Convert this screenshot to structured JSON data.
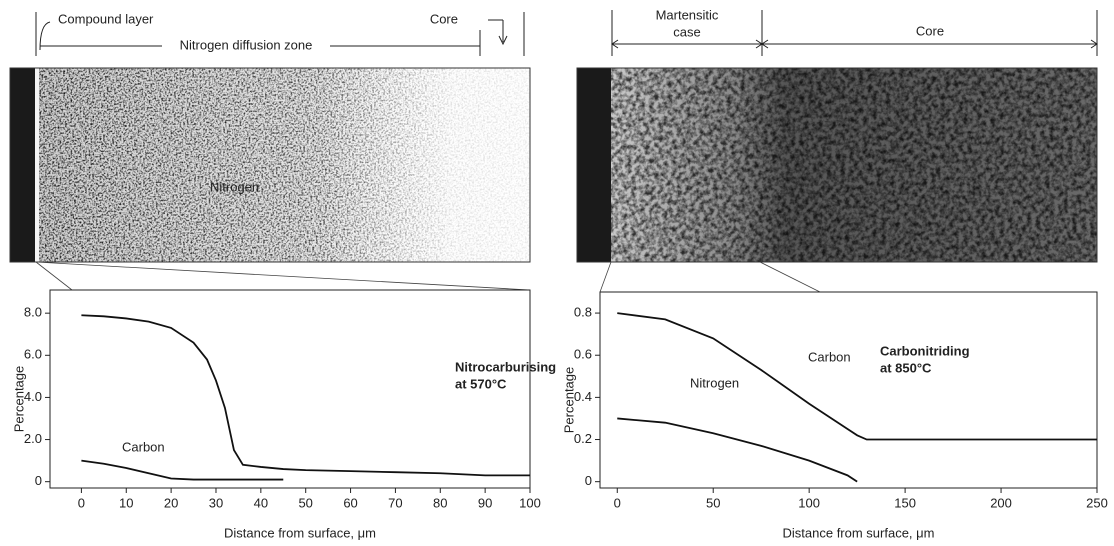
{
  "chart_data": [
    {
      "type": "line",
      "title": [
        "Nitrocarburising",
        "at 570°C"
      ],
      "micrograph_labels": [
        "Compound layer",
        "Nitrogen diffusion zone",
        "Core"
      ],
      "xlabel": "Distance from surface, μm",
      "ylabel": "Percentage",
      "x": [
        0,
        5,
        10,
        15,
        20,
        25,
        28,
        30,
        32,
        34,
        36,
        40,
        45,
        50,
        60,
        70,
        80,
        90,
        100
      ],
      "series": [
        {
          "name": "Nitrogen",
          "color": "#111111",
          "values": [
            7.9,
            7.85,
            7.75,
            7.6,
            7.3,
            6.6,
            5.8,
            4.8,
            3.5,
            1.5,
            0.8,
            0.7,
            0.6,
            0.55,
            0.5,
            0.45,
            0.4,
            0.3,
            0.3
          ]
        },
        {
          "name": "Carbon",
          "color": "#111111",
          "values": [
            1.0,
            0.85,
            0.65,
            0.4,
            0.15,
            0.1,
            0.1,
            0.1,
            0.1,
            0.1,
            0.1,
            0.1,
            0.1,
            null,
            null,
            null,
            null,
            null,
            null
          ]
        }
      ],
      "xlim": [
        -7,
        100
      ],
      "xticks": [
        0,
        10,
        20,
        30,
        40,
        50,
        60,
        70,
        80,
        90,
        100
      ],
      "ylim": [
        -0.3,
        9.1
      ],
      "yticks": [
        0,
        {
          "value": 2,
          "label": "2.0"
        },
        {
          "value": 4,
          "label": "4.0"
        },
        {
          "value": 6,
          "label": "6.0"
        },
        {
          "value": 8,
          "label": "8.0"
        }
      ]
    },
    {
      "type": "line",
      "title": [
        "Carbonitriding",
        "at 850°C"
      ],
      "micrograph_labels": [
        "Martensitic",
        "case",
        "Core"
      ],
      "xlabel": "Distance from surface, μm",
      "ylabel": "Percentage",
      "x": [
        0,
        25,
        50,
        75,
        100,
        120,
        125,
        130,
        150,
        200,
        250
      ],
      "series": [
        {
          "name": "Carbon",
          "color": "#111111",
          "values": [
            0.8,
            0.77,
            0.68,
            0.53,
            0.37,
            0.25,
            0.22,
            0.2,
            0.2,
            0.2,
            0.2
          ]
        },
        {
          "name": "Nitrogen",
          "color": "#111111",
          "values": [
            0.3,
            0.28,
            0.23,
            0.17,
            0.1,
            0.03,
            0,
            null,
            null,
            null,
            null
          ]
        }
      ],
      "xlim": [
        -9,
        250
      ],
      "xticks": [
        0,
        50,
        100,
        150,
        200,
        250
      ],
      "ylim": [
        -0.03,
        0.9
      ],
      "yticks": [
        0,
        0.2,
        0.4,
        0.6,
        0.8
      ]
    }
  ]
}
